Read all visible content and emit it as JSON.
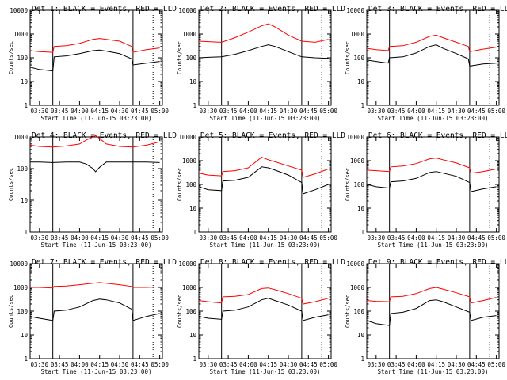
{
  "figure": {
    "x_ticks": [
      "03:30",
      "03:45",
      "04:00",
      "04:15",
      "04:30",
      "04:45",
      "05:00"
    ],
    "y_ticks": [
      "1",
      "10",
      "100",
      "1000",
      "10000"
    ],
    "xlabel": "Start Time (11-Jun-15 03:23:00)",
    "ylabel": "Counts/sec"
  },
  "chart_data": [
    {
      "type": "line",
      "title": "Det 1: BLACK = Events, RED = LLD",
      "xlabel": "Start Time (11-Jun-15 03:23:00)",
      "ylabel": "Counts/sec",
      "x_ticks": [
        "03:30",
        "03:45",
        "04:00",
        "04:15",
        "04:30",
        "04:45",
        "05:00"
      ],
      "y_scale": "log",
      "ylim": [
        1,
        10000
      ],
      "xlim": [
        "03:23",
        "05:02"
      ],
      "vlines": [
        {
          "time": "03:40",
          "style": "solid"
        },
        {
          "time": "04:40",
          "style": "solid"
        },
        {
          "time": "04:55",
          "style": "dotted"
        }
      ],
      "x": [
        "03:23",
        "03:30",
        "03:40",
        "03:41",
        "03:50",
        "04:00",
        "04:10",
        "04:15",
        "04:20",
        "04:30",
        "04:39",
        "04:40",
        "04:50",
        "05:00"
      ],
      "series": [
        {
          "color": "#000000",
          "values": [
            40,
            32,
            28,
            110,
            120,
            150,
            200,
            210,
            190,
            150,
            90,
            50,
            60,
            70
          ]
        },
        {
          "color": "#ff0000",
          "values": [
            200,
            180,
            170,
            300,
            320,
            400,
            600,
            650,
            600,
            500,
            300,
            170,
            220,
            260
          ]
        }
      ]
    },
    {
      "type": "line",
      "title": "Det 2: BLACK = Events, RED = LLD",
      "xlabel": "Start Time (11-Jun-15 03:23:00)",
      "ylabel": "Counts/sec",
      "x_ticks": [
        "03:30",
        "03:45",
        "04:00",
        "04:15",
        "04:30",
        "04:45",
        "05:00"
      ],
      "y_scale": "log",
      "ylim": [
        1,
        10000
      ],
      "xlim": [
        "03:23",
        "05:02"
      ],
      "vlines": [
        {
          "time": "03:40",
          "style": "solid"
        },
        {
          "time": "04:40",
          "style": "solid"
        },
        {
          "time": "04:55",
          "style": "dotted"
        }
      ],
      "x": [
        "03:23",
        "03:30",
        "03:40",
        "03:50",
        "04:00",
        "04:10",
        "04:15",
        "04:20",
        "04:30",
        "04:40",
        "04:50",
        "05:00"
      ],
      "series": [
        {
          "color": "#000000",
          "values": [
            100,
            105,
            110,
            140,
            200,
            300,
            350,
            300,
            180,
            110,
            100,
            95
          ]
        },
        {
          "color": "#ff0000",
          "values": [
            500,
            480,
            450,
            700,
            1200,
            2200,
            2700,
            2000,
            900,
            500,
            450,
            600
          ]
        }
      ]
    },
    {
      "type": "line",
      "title": "Det 3: BLACK = Events, RED = LLD",
      "xlabel": "Start Time (11-Jun-15 03:23:00)",
      "ylabel": "Counts/sec",
      "x_ticks": [
        "03:30",
        "03:45",
        "04:00",
        "04:15",
        "04:30",
        "04:45",
        "05:00"
      ],
      "y_scale": "log",
      "ylim": [
        1,
        10000
      ],
      "xlim": [
        "03:23",
        "05:02"
      ],
      "vlines": [
        {
          "time": "03:40",
          "style": "solid"
        },
        {
          "time": "04:40",
          "style": "solid"
        },
        {
          "time": "04:55",
          "style": "dotted"
        }
      ],
      "x": [
        "03:23",
        "03:30",
        "03:39",
        "03:40",
        "03:50",
        "04:00",
        "04:10",
        "04:15",
        "04:20",
        "04:30",
        "04:39",
        "04:40",
        "04:50",
        "05:00"
      ],
      "series": [
        {
          "color": "#000000",
          "values": [
            80,
            70,
            60,
            100,
            110,
            160,
            300,
            350,
            250,
            150,
            90,
            45,
            55,
            60
          ]
        },
        {
          "color": "#ff0000",
          "values": [
            250,
            220,
            200,
            300,
            320,
            450,
            800,
            900,
            700,
            450,
            300,
            180,
            230,
            280
          ]
        }
      ]
    },
    {
      "type": "line",
      "title": "Det 4: BLACK = Events, RED = LLD",
      "xlabel": "Start Time (11-Jun-15 03:23:00)",
      "ylabel": "Counts/sec",
      "x_ticks": [
        "03:30",
        "03:45",
        "04:00",
        "04:15",
        "04:30",
        "04:45",
        "05:00"
      ],
      "y_scale": "log",
      "ylim": [
        1,
        1000
      ],
      "xlim": [
        "03:23",
        "05:02"
      ],
      "vlines": [
        {
          "time": "03:40",
          "style": "solid"
        },
        {
          "time": "04:40",
          "style": "solid"
        },
        {
          "time": "04:55",
          "style": "dotted"
        }
      ],
      "x": [
        "03:23",
        "03:30",
        "03:40",
        "03:50",
        "04:00",
        "04:05",
        "04:10",
        "04:12",
        "04:15",
        "04:20",
        "04:30",
        "04:40",
        "04:50",
        "05:00"
      ],
      "series": [
        {
          "color": "#000000",
          "values": [
            160,
            160,
            155,
            160,
            160,
            140,
            100,
            80,
            110,
            160,
            160,
            160,
            160,
            155
          ]
        },
        {
          "color": "#ff0000",
          "values": [
            550,
            500,
            480,
            520,
            600,
            800,
            1000,
            1100,
            900,
            600,
            500,
            480,
            550,
            700
          ]
        }
      ]
    },
    {
      "type": "line",
      "title": "Det 5: BLACK = Events, RED = LLD",
      "xlabel": "Start Time (11-Jun-15 03:23:00)",
      "ylabel": "Counts/sec",
      "x_ticks": [
        "03:30",
        "03:45",
        "04:00",
        "04:15",
        "04:30",
        "04:45",
        "05:00"
      ],
      "y_scale": "log",
      "ylim": [
        1,
        10000
      ],
      "xlim": [
        "03:23",
        "05:02"
      ],
      "vlines": [
        {
          "time": "03:40",
          "style": "solid"
        },
        {
          "time": "04:40",
          "style": "solid"
        },
        {
          "time": "04:55",
          "style": "dotted"
        }
      ],
      "x": [
        "03:23",
        "03:30",
        "03:40",
        "03:41",
        "03:50",
        "04:00",
        "04:10",
        "04:15",
        "04:20",
        "04:30",
        "04:40",
        "04:41",
        "04:50",
        "05:00"
      ],
      "series": [
        {
          "color": "#000000",
          "values": [
            80,
            60,
            55,
            140,
            150,
            200,
            550,
            500,
            400,
            250,
            120,
            40,
            60,
            100
          ]
        },
        {
          "color": "#ff0000",
          "values": [
            300,
            250,
            230,
            350,
            380,
            500,
            1400,
            1100,
            900,
            600,
            400,
            200,
            280,
            450
          ]
        }
      ]
    },
    {
      "type": "line",
      "title": "Det 6: BLACK = Events, RED = LLD",
      "xlabel": "Start Time (11-Jun-15 03:23:00)",
      "ylabel": "Counts/sec",
      "x_ticks": [
        "03:30",
        "03:45",
        "04:00",
        "04:15",
        "04:30",
        "04:45",
        "05:00"
      ],
      "y_scale": "log",
      "ylim": [
        1,
        10000
      ],
      "xlim": [
        "03:23",
        "05:02"
      ],
      "vlines": [
        {
          "time": "03:40",
          "style": "solid"
        },
        {
          "time": "04:40",
          "style": "solid"
        },
        {
          "time": "04:55",
          "style": "dotted"
        }
      ],
      "x": [
        "03:23",
        "03:30",
        "03:40",
        "03:41",
        "03:50",
        "04:00",
        "04:10",
        "04:15",
        "04:20",
        "04:30",
        "04:40",
        "04:41",
        "04:50",
        "05:00"
      ],
      "series": [
        {
          "color": "#000000",
          "values": [
            100,
            80,
            70,
            130,
            140,
            180,
            320,
            350,
            300,
            220,
            120,
            50,
            65,
            80
          ]
        },
        {
          "color": "#ff0000",
          "values": [
            400,
            380,
            350,
            550,
            600,
            750,
            1200,
            1300,
            1100,
            800,
            500,
            300,
            350,
            450
          ]
        }
      ]
    },
    {
      "type": "line",
      "title": "Det 7: BLACK = Events, RED = LLD",
      "xlabel": "Start Time (11-Jun-15 03:23:00)",
      "ylabel": "Counts/sec",
      "x_ticks": [
        "03:30",
        "03:45",
        "04:00",
        "04:15",
        "04:30",
        "04:45",
        "05:00"
      ],
      "y_scale": "log",
      "ylim": [
        1,
        10000
      ],
      "xlim": [
        "03:23",
        "05:02"
      ],
      "vlines": [
        {
          "time": "03:40",
          "style": "solid"
        },
        {
          "time": "04:40",
          "style": "solid"
        },
        {
          "time": "04:55",
          "style": "dotted"
        }
      ],
      "x": [
        "03:23",
        "03:30",
        "03:40",
        "03:41",
        "03:50",
        "04:00",
        "04:10",
        "04:15",
        "04:20",
        "04:30",
        "04:39",
        "04:40",
        "04:50",
        "05:00"
      ],
      "series": [
        {
          "color": "#000000",
          "values": [
            60,
            50,
            40,
            100,
            110,
            150,
            280,
            320,
            300,
            220,
            120,
            40,
            60,
            80
          ]
        },
        {
          "color": "#ff0000",
          "values": [
            1000,
            1000,
            950,
            1100,
            1150,
            1300,
            1500,
            1600,
            1500,
            1300,
            1100,
            1000,
            1000,
            1050
          ]
        }
      ]
    },
    {
      "type": "line",
      "title": "Det 8: BLACK = Events, RED = LLD",
      "xlabel": "Start Time (11-Jun-15 03:23:00)",
      "ylabel": "Counts/sec",
      "x_ticks": [
        "03:30",
        "03:45",
        "04:00",
        "04:15",
        "04:30",
        "04:45",
        "05:00"
      ],
      "y_scale": "log",
      "ylim": [
        1,
        10000
      ],
      "xlim": [
        "03:23",
        "05:02"
      ],
      "vlines": [
        {
          "time": "03:40",
          "style": "solid"
        },
        {
          "time": "04:40",
          "style": "solid"
        },
        {
          "time": "04:55",
          "style": "dotted"
        }
      ],
      "x": [
        "03:23",
        "03:30",
        "03:40",
        "03:41",
        "03:50",
        "04:00",
        "04:10",
        "04:15",
        "04:20",
        "04:30",
        "04:40",
        "04:41",
        "04:50",
        "05:00"
      ],
      "series": [
        {
          "color": "#000000",
          "values": [
            60,
            50,
            45,
            100,
            110,
            150,
            300,
            350,
            280,
            180,
            100,
            40,
            55,
            70
          ]
        },
        {
          "color": "#ff0000",
          "values": [
            280,
            250,
            220,
            400,
            420,
            500,
            900,
            950,
            800,
            550,
            350,
            200,
            250,
            350
          ]
        }
      ]
    },
    {
      "type": "line",
      "title": "Det 9: BLACK = Events, RED = LLD",
      "xlabel": "Start Time (11-Jun-15 03:23:00)",
      "ylabel": "Counts/sec",
      "x_ticks": [
        "03:30",
        "03:45",
        "04:00",
        "04:15",
        "04:30",
        "04:45",
        "05:00"
      ],
      "y_scale": "log",
      "ylim": [
        1,
        10000
      ],
      "xlim": [
        "03:23",
        "05:02"
      ],
      "vlines": [
        {
          "time": "03:40",
          "style": "solid"
        },
        {
          "time": "04:40",
          "style": "solid"
        },
        {
          "time": "04:55",
          "style": "dotted"
        }
      ],
      "x": [
        "03:23",
        "03:30",
        "03:40",
        "03:41",
        "03:50",
        "04:00",
        "04:10",
        "04:15",
        "04:20",
        "04:30",
        "04:40",
        "04:41",
        "04:50",
        "05:00"
      ],
      "series": [
        {
          "color": "#000000",
          "values": [
            40,
            30,
            25,
            80,
            90,
            130,
            280,
            300,
            250,
            150,
            90,
            40,
            55,
            65
          ]
        },
        {
          "color": "#ff0000",
          "values": [
            280,
            260,
            250,
            400,
            420,
            550,
            900,
            1000,
            850,
            600,
            400,
            220,
            280,
            380
          ]
        }
      ]
    }
  ]
}
